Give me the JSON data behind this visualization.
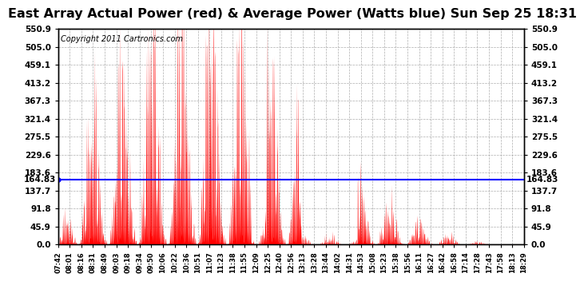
{
  "title": "East Array Actual Power (red) & Average Power (Watts blue) Sun Sep 25 18:31",
  "copyright": "Copyright 2011 Cartronics.com",
  "avg_power": 164.83,
  "ylim": [
    0,
    550.9
  ],
  "yticks": [
    0.0,
    45.9,
    91.8,
    137.7,
    183.6,
    229.6,
    275.5,
    321.4,
    367.3,
    413.2,
    459.1,
    505.0,
    550.9
  ],
  "ytick_labels": [
    "0.0",
    "45.9",
    "91.8",
    "137.7",
    "183.6",
    "229.6",
    "275.5",
    "321.4",
    "367.3",
    "413.2",
    "459.1",
    "505.0",
    "550.9"
  ],
  "fill_color": "red",
  "line_color": "blue",
  "bg_color": "white",
  "grid_color": "#999999",
  "title_fontsize": 11.5,
  "copyright_fontsize": 7,
  "avg_label_fontsize": 7.5,
  "xtick_labels": [
    "07:42",
    "08:01",
    "08:16",
    "08:31",
    "08:49",
    "09:03",
    "09:18",
    "09:34",
    "09:50",
    "10:06",
    "10:22",
    "10:36",
    "10:51",
    "11:07",
    "11:23",
    "11:38",
    "11:55",
    "12:09",
    "12:25",
    "12:40",
    "12:56",
    "13:13",
    "13:28",
    "13:44",
    "14:02",
    "14:31",
    "14:53",
    "15:08",
    "15:23",
    "15:38",
    "15:56",
    "16:11",
    "16:27",
    "16:42",
    "16:58",
    "17:14",
    "17:28",
    "17:43",
    "17:58",
    "18:13",
    "18:29"
  ],
  "max_power": 550.0,
  "n_points": 2460
}
